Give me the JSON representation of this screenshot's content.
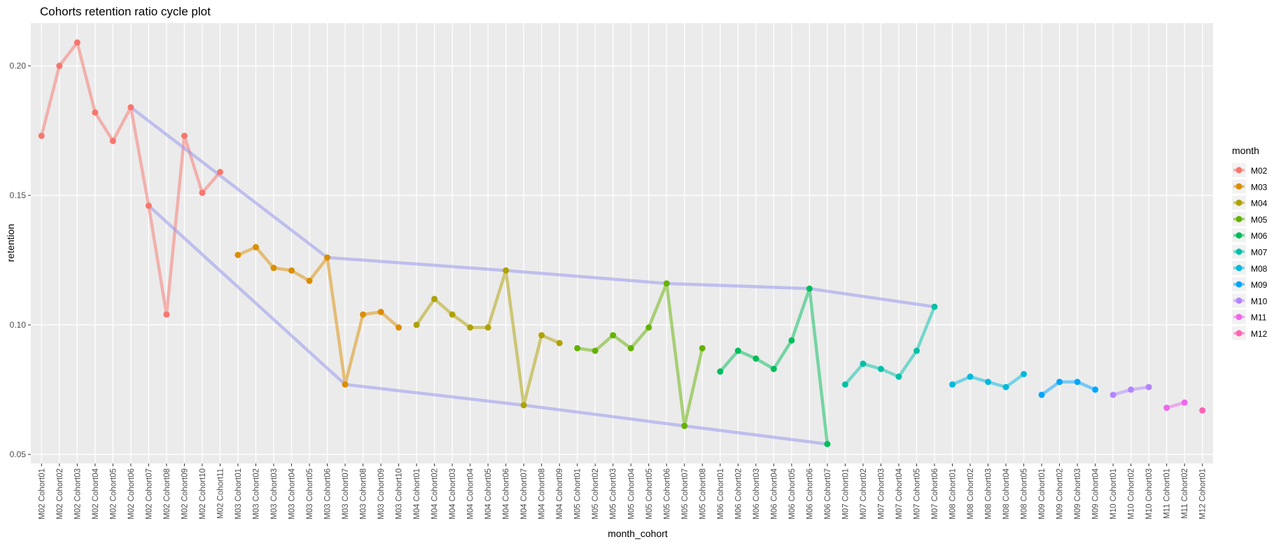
{
  "chart_data": {
    "type": "line",
    "title": "Cohorts retention ratio cycle plot",
    "x_label": "month_cohort",
    "y_label": "retention",
    "legend_title": "month",
    "legend_position": "right",
    "grid": true,
    "categories": [
      "M02 Cohort01",
      "M02 Cohort02",
      "M02 Cohort03",
      "M02 Cohort04",
      "M02 Cohort05",
      "M02 Cohort06",
      "M02 Cohort07",
      "M02 Cohort08",
      "M02 Cohort09",
      "M02 Cohort10",
      "M02 Cohort11",
      "M03 Cohort01",
      "M03 Cohort02",
      "M03 Cohort03",
      "M03 Cohort04",
      "M03 Cohort05",
      "M03 Cohort06",
      "M03 Cohort07",
      "M03 Cohort08",
      "M03 Cohort09",
      "M03 Cohort10",
      "M04 Cohort01",
      "M04 Cohort02",
      "M04 Cohort03",
      "M04 Cohort04",
      "M04 Cohort05",
      "M04 Cohort06",
      "M04 Cohort07",
      "M04 Cohort08",
      "M04 Cohort09",
      "M05 Cohort01",
      "M05 Cohort02",
      "M05 Cohort03",
      "M05 Cohort04",
      "M05 Cohort05",
      "M05 Cohort06",
      "M05 Cohort07",
      "M05 Cohort08",
      "M06 Cohort01",
      "M06 Cohort02",
      "M06 Cohort03",
      "M06 Cohort04",
      "M06 Cohort05",
      "M06 Cohort06",
      "M06 Cohort07",
      "M07 Cohort01",
      "M07 Cohort02",
      "M07 Cohort03",
      "M07 Cohort04",
      "M07 Cohort05",
      "M07 Cohort06",
      "M08 Cohort01",
      "M08 Cohort02",
      "M08 Cohort03",
      "M08 Cohort04",
      "M08 Cohort05",
      "M09 Cohort01",
      "M09 Cohort02",
      "M09 Cohort03",
      "M09 Cohort04",
      "M10 Cohort01",
      "M10 Cohort02",
      "M10 Cohort03",
      "M11 Cohort01",
      "M11 Cohort02",
      "M12 Cohort01"
    ],
    "series": [
      {
        "name": "M02",
        "color": "#F8766D",
        "values": [
          0.173,
          0.2,
          0.209,
          0.182,
          0.171,
          0.184,
          0.146,
          0.104,
          0.173,
          0.151,
          0.159,
          null,
          null,
          null,
          null,
          null,
          null,
          null,
          null,
          null,
          null,
          null,
          null,
          null,
          null,
          null,
          null,
          null,
          null,
          null,
          null,
          null,
          null,
          null,
          null,
          null,
          null,
          null,
          null,
          null,
          null,
          null,
          null,
          null,
          null,
          null,
          null,
          null,
          null,
          null,
          null,
          null,
          null,
          null,
          null,
          null,
          null,
          null,
          null,
          null,
          null,
          null,
          null,
          null,
          null,
          null
        ]
      },
      {
        "name": "M03",
        "color": "#DB8E00",
        "values": [
          null,
          null,
          null,
          null,
          null,
          null,
          null,
          null,
          null,
          null,
          null,
          0.127,
          0.13,
          0.122,
          0.121,
          0.117,
          0.126,
          0.077,
          0.104,
          0.105,
          0.099,
          null,
          null,
          null,
          null,
          null,
          null,
          null,
          null,
          null,
          null,
          null,
          null,
          null,
          null,
          null,
          null,
          null,
          null,
          null,
          null,
          null,
          null,
          null,
          null,
          null,
          null,
          null,
          null,
          null,
          null,
          null,
          null,
          null,
          null,
          null,
          null,
          null,
          null,
          null,
          null,
          null,
          null,
          null,
          null,
          null
        ]
      },
      {
        "name": "M04",
        "color": "#AEA200",
        "values": [
          null,
          null,
          null,
          null,
          null,
          null,
          null,
          null,
          null,
          null,
          null,
          null,
          null,
          null,
          null,
          null,
          null,
          null,
          null,
          null,
          null,
          0.1,
          0.11,
          0.104,
          0.099,
          0.099,
          0.121,
          0.069,
          0.096,
          0.093,
          null,
          null,
          null,
          null,
          null,
          null,
          null,
          null,
          null,
          null,
          null,
          null,
          null,
          null,
          null,
          null,
          null,
          null,
          null,
          null,
          null,
          null,
          null,
          null,
          null,
          null,
          null,
          null,
          null,
          null,
          null,
          null,
          null,
          null,
          null,
          null
        ]
      },
      {
        "name": "M05",
        "color": "#64B200",
        "values": [
          null,
          null,
          null,
          null,
          null,
          null,
          null,
          null,
          null,
          null,
          null,
          null,
          null,
          null,
          null,
          null,
          null,
          null,
          null,
          null,
          null,
          null,
          null,
          null,
          null,
          null,
          null,
          null,
          null,
          null,
          0.091,
          0.09,
          0.096,
          0.091,
          0.099,
          0.116,
          0.061,
          0.091,
          null,
          null,
          null,
          null,
          null,
          null,
          null,
          null,
          null,
          null,
          null,
          null,
          null,
          null,
          null,
          null,
          null,
          null,
          null,
          null,
          null,
          null,
          null,
          null,
          null,
          null,
          null,
          null
        ]
      },
      {
        "name": "M06",
        "color": "#00BD5C",
        "values": [
          null,
          null,
          null,
          null,
          null,
          null,
          null,
          null,
          null,
          null,
          null,
          null,
          null,
          null,
          null,
          null,
          null,
          null,
          null,
          null,
          null,
          null,
          null,
          null,
          null,
          null,
          null,
          null,
          null,
          null,
          null,
          null,
          null,
          null,
          null,
          null,
          null,
          null,
          0.082,
          0.09,
          0.087,
          0.083,
          0.094,
          0.114,
          0.054,
          null,
          null,
          null,
          null,
          null,
          null,
          null,
          null,
          null,
          null,
          null,
          null,
          null,
          null,
          null,
          null,
          null,
          null,
          null,
          null,
          null
        ]
      },
      {
        "name": "M07",
        "color": "#00C1A7",
        "values": [
          null,
          null,
          null,
          null,
          null,
          null,
          null,
          null,
          null,
          null,
          null,
          null,
          null,
          null,
          null,
          null,
          null,
          null,
          null,
          null,
          null,
          null,
          null,
          null,
          null,
          null,
          null,
          null,
          null,
          null,
          null,
          null,
          null,
          null,
          null,
          null,
          null,
          null,
          null,
          null,
          null,
          null,
          null,
          null,
          null,
          0.077,
          0.085,
          0.083,
          0.08,
          0.09,
          0.107,
          null,
          null,
          null,
          null,
          null,
          null,
          null,
          null,
          null,
          null,
          null,
          null,
          null,
          null,
          null
        ]
      },
      {
        "name": "M08",
        "color": "#00BADE",
        "values": [
          null,
          null,
          null,
          null,
          null,
          null,
          null,
          null,
          null,
          null,
          null,
          null,
          null,
          null,
          null,
          null,
          null,
          null,
          null,
          null,
          null,
          null,
          null,
          null,
          null,
          null,
          null,
          null,
          null,
          null,
          null,
          null,
          null,
          null,
          null,
          null,
          null,
          null,
          null,
          null,
          null,
          null,
          null,
          null,
          null,
          null,
          null,
          null,
          null,
          null,
          null,
          0.077,
          0.08,
          0.078,
          0.076,
          0.081,
          null,
          null,
          null,
          null,
          null,
          null,
          null,
          null,
          null,
          null
        ]
      },
      {
        "name": "M09",
        "color": "#00A6FF",
        "values": [
          null,
          null,
          null,
          null,
          null,
          null,
          null,
          null,
          null,
          null,
          null,
          null,
          null,
          null,
          null,
          null,
          null,
          null,
          null,
          null,
          null,
          null,
          null,
          null,
          null,
          null,
          null,
          null,
          null,
          null,
          null,
          null,
          null,
          null,
          null,
          null,
          null,
          null,
          null,
          null,
          null,
          null,
          null,
          null,
          null,
          null,
          null,
          null,
          null,
          null,
          null,
          null,
          null,
          null,
          null,
          null,
          0.073,
          0.078,
          0.078,
          0.075,
          null,
          null,
          null,
          null,
          null,
          null
        ]
      },
      {
        "name": "M10",
        "color": "#B385FF",
        "values": [
          null,
          null,
          null,
          null,
          null,
          null,
          null,
          null,
          null,
          null,
          null,
          null,
          null,
          null,
          null,
          null,
          null,
          null,
          null,
          null,
          null,
          null,
          null,
          null,
          null,
          null,
          null,
          null,
          null,
          null,
          null,
          null,
          null,
          null,
          null,
          null,
          null,
          null,
          null,
          null,
          null,
          null,
          null,
          null,
          null,
          null,
          null,
          null,
          null,
          null,
          null,
          null,
          null,
          null,
          null,
          null,
          null,
          null,
          null,
          null,
          0.073,
          0.075,
          0.076,
          null,
          null,
          null
        ]
      },
      {
        "name": "M11",
        "color": "#EF67EB",
        "values": [
          null,
          null,
          null,
          null,
          null,
          null,
          null,
          null,
          null,
          null,
          null,
          null,
          null,
          null,
          null,
          null,
          null,
          null,
          null,
          null,
          null,
          null,
          null,
          null,
          null,
          null,
          null,
          null,
          null,
          null,
          null,
          null,
          null,
          null,
          null,
          null,
          null,
          null,
          null,
          null,
          null,
          null,
          null,
          null,
          null,
          null,
          null,
          null,
          null,
          null,
          null,
          null,
          null,
          null,
          null,
          null,
          null,
          null,
          null,
          null,
          null,
          null,
          null,
          0.068,
          0.07,
          null
        ]
      },
      {
        "name": "M12",
        "color": "#FF63B6",
        "values": [
          null,
          null,
          null,
          null,
          null,
          null,
          null,
          null,
          null,
          null,
          null,
          null,
          null,
          null,
          null,
          null,
          null,
          null,
          null,
          null,
          null,
          null,
          null,
          null,
          null,
          null,
          null,
          null,
          null,
          null,
          null,
          null,
          null,
          null,
          null,
          null,
          null,
          null,
          null,
          null,
          null,
          null,
          null,
          null,
          null,
          null,
          null,
          null,
          null,
          null,
          null,
          null,
          null,
          null,
          null,
          null,
          null,
          null,
          null,
          null,
          null,
          null,
          null,
          null,
          null,
          0.067
        ]
      }
    ],
    "overlays": [
      {
        "color": "#9999ee",
        "categories": [
          "M02 Cohort06",
          "M03 Cohort06",
          "M04 Cohort06",
          "M05 Cohort06",
          "M06 Cohort06",
          "M07 Cohort06"
        ],
        "values": [
          0.184,
          0.126,
          0.121,
          0.116,
          0.114,
          0.107
        ]
      },
      {
        "color": "#9999ee",
        "categories": [
          "M02 Cohort07",
          "M03 Cohort07",
          "M04 Cohort07",
          "M05 Cohort07",
          "M06 Cohort07"
        ],
        "values": [
          0.146,
          0.077,
          0.069,
          0.061,
          0.054
        ]
      }
    ],
    "ylim": [
      0.0465,
      0.2165
    ],
    "yticks": [
      0.05,
      {
        "value": 0.1,
        "label": "0.10"
      },
      0.15,
      {
        "value": 0.2,
        "label": "0.20"
      }
    ]
  }
}
